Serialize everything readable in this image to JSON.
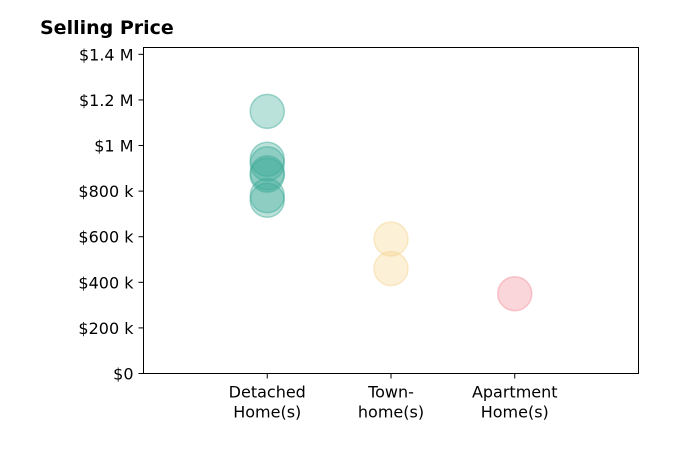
{
  "chart_data": {
    "type": "scatter",
    "title": "Selling Price",
    "xlabel": "",
    "ylabel": "",
    "categories": [
      [
        "Detached",
        "Home(s)"
      ],
      [
        "Town-",
        "home(s)"
      ],
      [
        "Apartment",
        "Home(s)"
      ]
    ],
    "x_range": [
      0,
      4
    ],
    "category_x": [
      1,
      2,
      3
    ],
    "ylim": [
      0,
      1430000
    ],
    "y_ticks": [
      0,
      200000,
      400000,
      600000,
      800000,
      1000000,
      1200000,
      1400000
    ],
    "y_tick_labels": [
      "$0",
      "$200 k",
      "$400 k",
      "$600 k",
      "$800 k",
      "$1 M",
      "$1.2 M",
      "$1.4 M"
    ],
    "grid": false,
    "series": [
      {
        "color": "#3aa896",
        "values": [
          1150000,
          940000,
          920000,
          880000,
          870000,
          780000,
          760000
        ]
      },
      {
        "color": "#f5d38c",
        "values": [
          590000,
          460000
        ]
      },
      {
        "color": "#f28a96",
        "values": [
          350000
        ]
      }
    ]
  }
}
